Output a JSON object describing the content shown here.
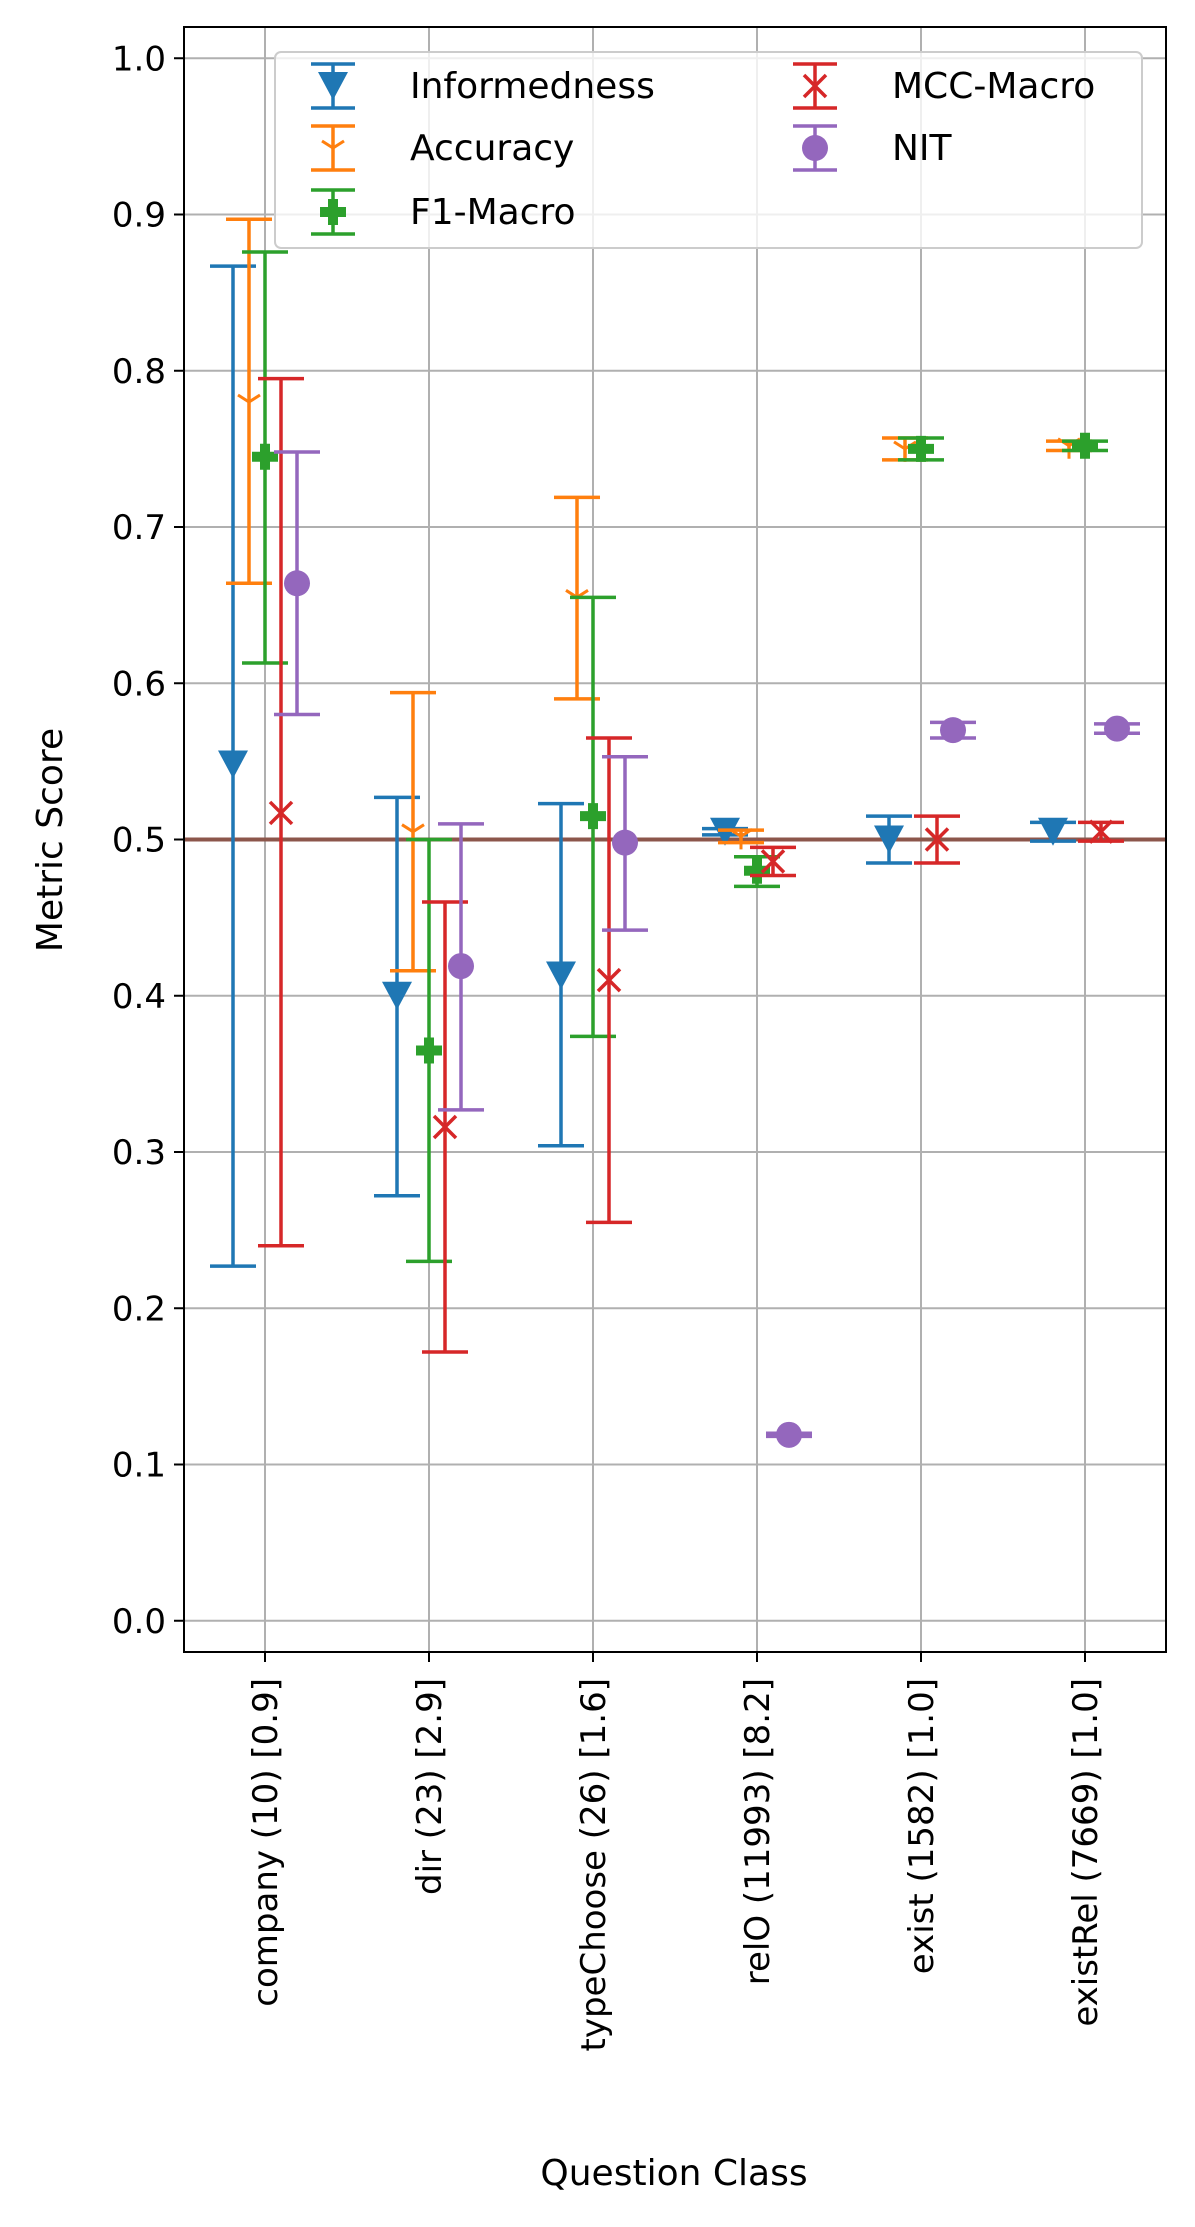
{
  "chart_data": {
    "type": "errorbar",
    "xlabel": "Question Class",
    "ylabel": "Metric Score",
    "ylim": [
      -0.02,
      1.02
    ],
    "yticks": [
      "0.0",
      "0.1",
      "0.2",
      "0.3",
      "0.4",
      "0.5",
      "0.6",
      "0.7",
      "0.8",
      "0.9",
      "1.0"
    ],
    "grid": true,
    "legend_position": "top-right",
    "baseline": 0.5,
    "baseline_color": "#8c564b",
    "categories": [
      "company (10) [0.9]",
      "dir (23) [2.9]",
      "typeChoose (26) [1.6]",
      "relO (11993) [8.2]",
      "exist (1582) [1.0]",
      "existRel (7669) [1.0]"
    ],
    "series": [
      {
        "name": "Informedness",
        "color": "#1f77b4",
        "marker": "triangle-down",
        "values": [
          0.548,
          0.4,
          0.413,
          0.505,
          0.5,
          0.505
        ],
        "lower": [
          0.227,
          0.272,
          0.304,
          0.503,
          0.485,
          0.499
        ],
        "upper": [
          0.867,
          0.527,
          0.523,
          0.507,
          0.515,
          0.511
        ]
      },
      {
        "name": "Accuracy",
        "color": "#ff7f0e",
        "marker": "tri-down",
        "values": [
          0.78,
          0.505,
          0.655,
          0.502,
          0.75,
          0.752
        ],
        "lower": [
          0.664,
          0.416,
          0.59,
          0.498,
          0.743,
          0.749
        ],
        "upper": [
          0.897,
          0.594,
          0.719,
          0.506,
          0.757,
          0.755
        ]
      },
      {
        "name": "F1-Macro",
        "color": "#2ca02c",
        "marker": "plus-filled",
        "values": [
          0.745,
          0.365,
          0.515,
          0.48,
          0.75,
          0.752
        ],
        "lower": [
          0.613,
          0.23,
          0.374,
          0.47,
          0.743,
          0.749
        ],
        "upper": [
          0.876,
          0.5,
          0.655,
          0.489,
          0.757,
          0.755
        ]
      },
      {
        "name": "MCC-Macro",
        "color": "#d62728",
        "marker": "x",
        "values": [
          0.517,
          0.316,
          0.41,
          0.486,
          0.5,
          0.505
        ],
        "lower": [
          0.24,
          0.172,
          0.255,
          0.477,
          0.485,
          0.499
        ],
        "upper": [
          0.795,
          0.46,
          0.565,
          0.495,
          0.515,
          0.511
        ]
      },
      {
        "name": "NIT",
        "color": "#9467bd",
        "marker": "circle",
        "values": [
          0.664,
          0.419,
          0.498,
          0.119,
          0.57,
          0.571
        ],
        "lower": [
          0.58,
          0.327,
          0.442,
          0.118,
          0.565,
          0.568
        ],
        "upper": [
          0.748,
          0.51,
          0.553,
          0.12,
          0.575,
          0.574
        ]
      }
    ]
  }
}
